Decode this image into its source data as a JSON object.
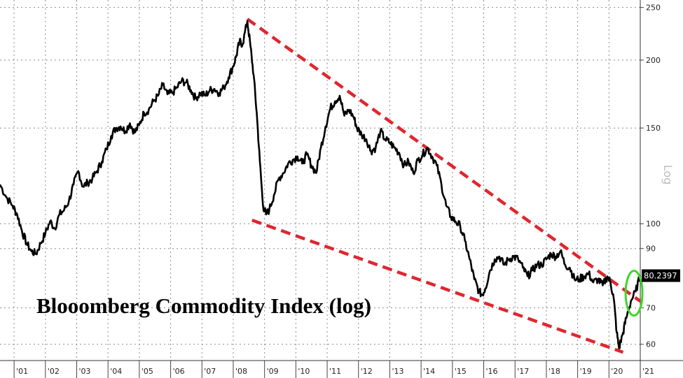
{
  "chart_data": {
    "type": "line",
    "title": "Blooomberg Commodity Index (log)",
    "yscale": "log",
    "scale_label": "Log",
    "ylim": [
      56,
      258
    ],
    "xlim": [
      2000.55,
      2021.0
    ],
    "grid": true,
    "yticks": [
      250,
      200,
      150,
      100,
      90,
      70,
      60
    ],
    "ytick_labels": [
      "250",
      "200",
      "150",
      "100",
      "90",
      "70",
      "60"
    ],
    "xticks": [
      2001,
      2002,
      2003,
      2004,
      2005,
      2006,
      2007,
      2008,
      2009,
      2010,
      2011,
      2012,
      2013,
      2014,
      2015,
      2016,
      2017,
      2018,
      2019,
      2020,
      2021
    ],
    "xtick_labels": [
      "'01",
      "'02",
      "'03",
      "'04",
      "'05",
      "'06",
      "'07",
      "'08",
      "'09",
      "'10",
      "'11",
      "'12",
      "'13",
      "'14",
      "'15",
      "'16",
      "'17",
      "'18",
      "'19",
      "'20",
      "'21"
    ],
    "last_value_label": "80.2397",
    "last_value": 80.2397,
    "colors": {
      "line": "#000000",
      "trend": "#e0262f",
      "highlight": "#3dd62a",
      "box": "#000000"
    },
    "series": [
      {
        "values": [
          [
            2000.55,
            118
          ],
          [
            2000.75,
            112
          ],
          [
            2000.95,
            108
          ],
          [
            2001.1,
            104
          ],
          [
            2001.25,
            97
          ],
          [
            2001.4,
            92
          ],
          [
            2001.55,
            89
          ],
          [
            2001.7,
            88
          ],
          [
            2001.85,
            92
          ],
          [
            2002.0,
            96
          ],
          [
            2002.15,
            101
          ],
          [
            2002.3,
            98
          ],
          [
            2002.45,
            104
          ],
          [
            2002.6,
            106
          ],
          [
            2002.75,
            110
          ],
          [
            2002.9,
            118
          ],
          [
            2003.05,
            125
          ],
          [
            2003.2,
            117
          ],
          [
            2003.35,
            119
          ],
          [
            2003.5,
            121
          ],
          [
            2003.65,
            125
          ],
          [
            2003.8,
            130
          ],
          [
            2003.95,
            137
          ],
          [
            2004.1,
            145
          ],
          [
            2004.25,
            150
          ],
          [
            2004.4,
            151
          ],
          [
            2004.55,
            148
          ],
          [
            2004.7,
            153
          ],
          [
            2004.85,
            147
          ],
          [
            2005.0,
            152
          ],
          [
            2005.15,
            160
          ],
          [
            2005.3,
            162
          ],
          [
            2005.45,
            168
          ],
          [
            2005.6,
            172
          ],
          [
            2005.75,
            180
          ],
          [
            2005.9,
            173
          ],
          [
            2006.05,
            174
          ],
          [
            2006.2,
            178
          ],
          [
            2006.35,
            183
          ],
          [
            2006.5,
            182
          ],
          [
            2006.65,
            176
          ],
          [
            2006.8,
            170
          ],
          [
            2006.95,
            174
          ],
          [
            2007.1,
            172
          ],
          [
            2007.25,
            176
          ],
          [
            2007.4,
            177
          ],
          [
            2007.55,
            174
          ],
          [
            2007.7,
            178
          ],
          [
            2007.85,
            186
          ],
          [
            2008.0,
            195
          ],
          [
            2008.1,
            204
          ],
          [
            2008.2,
            216
          ],
          [
            2008.3,
            214
          ],
          [
            2008.45,
            236
          ],
          [
            2008.55,
            212
          ],
          [
            2008.65,
            188
          ],
          [
            2008.75,
            160
          ],
          [
            2008.85,
            130
          ],
          [
            2008.95,
            108
          ],
          [
            2009.05,
            104
          ],
          [
            2009.15,
            106
          ],
          [
            2009.3,
            113
          ],
          [
            2009.45,
            121
          ],
          [
            2009.6,
            124
          ],
          [
            2009.75,
            129
          ],
          [
            2009.9,
            131
          ],
          [
            2010.05,
            133
          ],
          [
            2010.2,
            129
          ],
          [
            2010.35,
            134
          ],
          [
            2010.5,
            128
          ],
          [
            2010.65,
            124
          ],
          [
            2010.8,
            138
          ],
          [
            2010.95,
            151
          ],
          [
            2011.1,
            163
          ],
          [
            2011.25,
            168
          ],
          [
            2011.4,
            172
          ],
          [
            2011.55,
            158
          ],
          [
            2011.7,
            162
          ],
          [
            2011.85,
            157
          ],
          [
            2011.95,
            150
          ],
          [
            2012.1,
            146
          ],
          [
            2012.25,
            143
          ],
          [
            2012.4,
            136
          ],
          [
            2012.55,
            138
          ],
          [
            2012.7,
            148
          ],
          [
            2012.85,
            143
          ],
          [
            2013.0,
            141
          ],
          [
            2013.15,
            138
          ],
          [
            2013.3,
            135
          ],
          [
            2013.45,
            128
          ],
          [
            2013.6,
            130
          ],
          [
            2013.75,
            124
          ],
          [
            2013.9,
            131
          ],
          [
            2014.05,
            134
          ],
          [
            2014.2,
            138
          ],
          [
            2014.35,
            133
          ],
          [
            2014.5,
            128
          ],
          [
            2014.65,
            118
          ],
          [
            2014.8,
            108
          ],
          [
            2014.95,
            103
          ],
          [
            2015.1,
            101
          ],
          [
            2015.25,
            99
          ],
          [
            2015.4,
            93
          ],
          [
            2015.55,
            86
          ],
          [
            2015.7,
            79
          ],
          [
            2015.85,
            75
          ],
          [
            2015.95,
            74
          ],
          [
            2016.05,
            76
          ],
          [
            2016.2,
            82
          ],
          [
            2016.35,
            86
          ],
          [
            2016.5,
            87
          ],
          [
            2016.65,
            84
          ],
          [
            2016.8,
            86
          ],
          [
            2016.95,
            87
          ],
          [
            2017.1,
            86
          ],
          [
            2017.25,
            83
          ],
          [
            2017.4,
            80
          ],
          [
            2017.55,
            82
          ],
          [
            2017.7,
            84
          ],
          [
            2017.85,
            84
          ],
          [
            2018.0,
            86
          ],
          [
            2018.15,
            88
          ],
          [
            2018.3,
            87
          ],
          [
            2018.45,
            89
          ],
          [
            2018.6,
            84
          ],
          [
            2018.75,
            83
          ],
          [
            2018.9,
            79
          ],
          [
            2019.05,
            79
          ],
          [
            2019.2,
            80
          ],
          [
            2019.35,
            81
          ],
          [
            2019.5,
            78
          ],
          [
            2019.65,
            79
          ],
          [
            2019.8,
            77
          ],
          [
            2019.95,
            80
          ],
          [
            2020.05,
            78
          ],
          [
            2020.15,
            73
          ],
          [
            2020.25,
            63
          ],
          [
            2020.32,
            59
          ],
          [
            2020.45,
            63
          ],
          [
            2020.55,
            67
          ],
          [
            2020.7,
            72
          ],
          [
            2020.85,
            75
          ],
          [
            2021.0,
            80.2397
          ]
        ]
      }
    ],
    "trend_lines": [
      {
        "name": "upper",
        "points": [
          [
            2008.45,
            238
          ],
          [
            2021.0,
            72
          ]
        ]
      },
      {
        "name": "lower",
        "points": [
          [
            2008.6,
            101.5
          ],
          [
            2020.45,
            58
          ]
        ]
      }
    ],
    "highlight_ellipse": {
      "x": 2020.8,
      "y": 74.5
    }
  }
}
